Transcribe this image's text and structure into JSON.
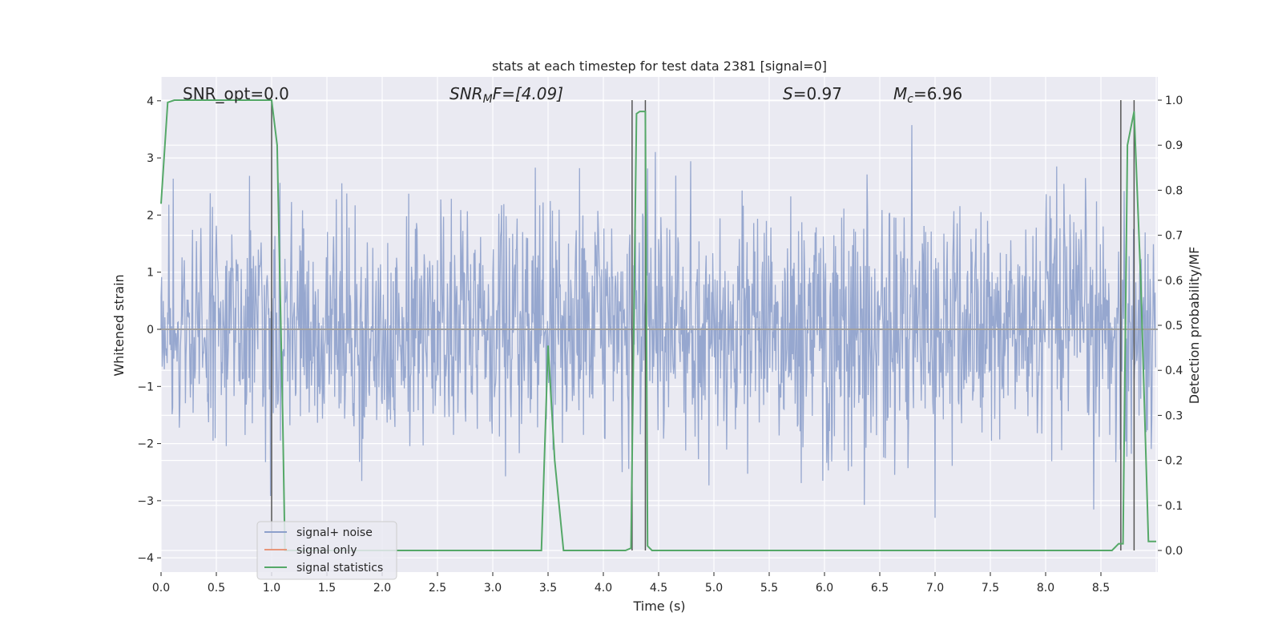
{
  "chart_data": {
    "type": "line",
    "title": "stats at each timestep for test data 2381 [signal=0]",
    "xlabel": "Time (s)",
    "ylabel_left": "Whitened strain",
    "ylabel_right": "Detection probability/MF",
    "xlim": [
      0.0,
      9.0
    ],
    "ylim_left": [
      -4.2,
      4.4
    ],
    "ylim_right": [
      -0.05,
      1.05
    ],
    "grid": true,
    "legend_placement": "lower-left",
    "x_ticks": [
      "0.0",
      "0.5",
      "1.0",
      "1.5",
      "2.0",
      "2.5",
      "3.0",
      "3.5",
      "4.0",
      "4.5",
      "5.0",
      "5.5",
      "6.0",
      "6.5",
      "7.0",
      "7.5",
      "8.0",
      "8.5"
    ],
    "y_left_ticks": [
      "4",
      "3",
      "2",
      "1",
      "0",
      "−1",
      "−2",
      "−3",
      "−4"
    ],
    "y_right_ticks": [
      "1.0",
      "0.9",
      "0.8",
      "0.7",
      "0.6",
      "0.5",
      "0.4",
      "0.3",
      "0.2",
      "0.1",
      "0.0"
    ],
    "annotations": {
      "snr_opt": "SNR_opt=0.0",
      "snr_mf_sym": "SNR",
      "snr_mf_sub": "M",
      "snr_mf_rest": "F=[4.09]",
      "s_sym": "S",
      "s_rest": "=0.97",
      "mc_sym": "M",
      "mc_sub": "c",
      "mc_rest": "=6.96"
    },
    "detection_markers_x": [
      1.0,
      4.26,
      4.38,
      8.68,
      8.8
    ],
    "series": [
      {
        "name": "signal+ noise",
        "color": "#8da0cb",
        "axis": "left",
        "description_only_for_render": "noise"
      },
      {
        "name": "signal only",
        "color": "#e7967a",
        "axis": "left",
        "values": []
      },
      {
        "name": "signal statistics",
        "color": "#55a868",
        "axis": "right",
        "x": [
          0.0,
          0.06,
          0.12,
          0.5,
          0.95,
          1.0,
          1.05,
          1.1,
          1.12,
          1.5,
          2.0,
          2.5,
          3.0,
          3.3,
          3.44,
          3.5,
          3.56,
          3.64,
          4.0,
          4.2,
          4.25,
          4.3,
          4.33,
          4.38,
          4.4,
          4.44,
          4.5,
          5.0,
          8.5,
          8.6,
          8.66,
          8.7,
          8.74,
          8.8,
          8.86,
          8.93,
          9.0
        ],
        "values": [
          0.77,
          0.995,
          1.0,
          1.0,
          1.0,
          1.0,
          0.9,
          0.3,
          0.0,
          0.0,
          0.0,
          0.0,
          0.0,
          0.0,
          0.0,
          0.455,
          0.2,
          0.0,
          0.0,
          0.0,
          0.005,
          0.97,
          0.975,
          0.975,
          0.01,
          0.0,
          0.0,
          0.0,
          0.0,
          0.0,
          0.015,
          0.015,
          0.9,
          0.975,
          0.6,
          0.02,
          0.02
        ]
      }
    ]
  }
}
